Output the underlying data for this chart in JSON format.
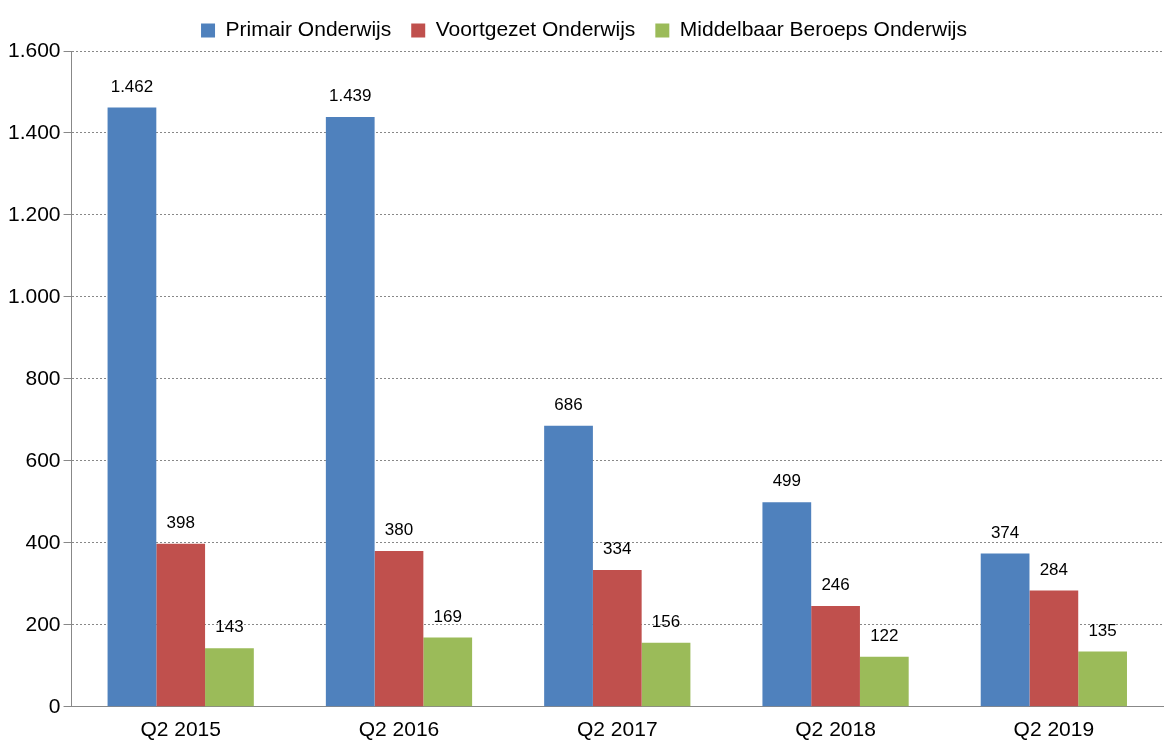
{
  "chart_data": {
    "type": "bar",
    "categories": [
      "Q2 2015",
      "Q2 2016",
      "Q2 2017",
      "Q2 2018",
      "Q2 2019"
    ],
    "series": [
      {
        "name": "Primair Onderwijs",
        "color": "#4f81bd",
        "values": [
          1462,
          1439,
          686,
          499,
          374
        ],
        "value_labels": [
          "1.462",
          "1.439",
          "686",
          "499",
          "374"
        ]
      },
      {
        "name": "Voortgezet Onderwijs",
        "color": "#c0504d",
        "values": [
          398,
          380,
          334,
          246,
          284
        ],
        "value_labels": [
          "398",
          "380",
          "334",
          "246",
          "284"
        ]
      },
      {
        "name": "Middelbaar Beroeps Onderwijs",
        "color": "#9bbb59",
        "values": [
          143,
          169,
          156,
          122,
          135
        ],
        "value_labels": [
          "143",
          "169",
          "156",
          "122",
          "135"
        ]
      }
    ],
    "ylim": [
      0,
      1600
    ],
    "yticks": [
      0,
      200,
      400,
      600,
      800,
      {
        "value": 1000,
        "label": "1.000"
      },
      {
        "value": 1200,
        "label": "1.200"
      },
      {
        "value": 1400,
        "label": "1.400"
      },
      {
        "value": 1600,
        "label": "1.600"
      }
    ],
    "grid": "y",
    "legend": "top"
  }
}
